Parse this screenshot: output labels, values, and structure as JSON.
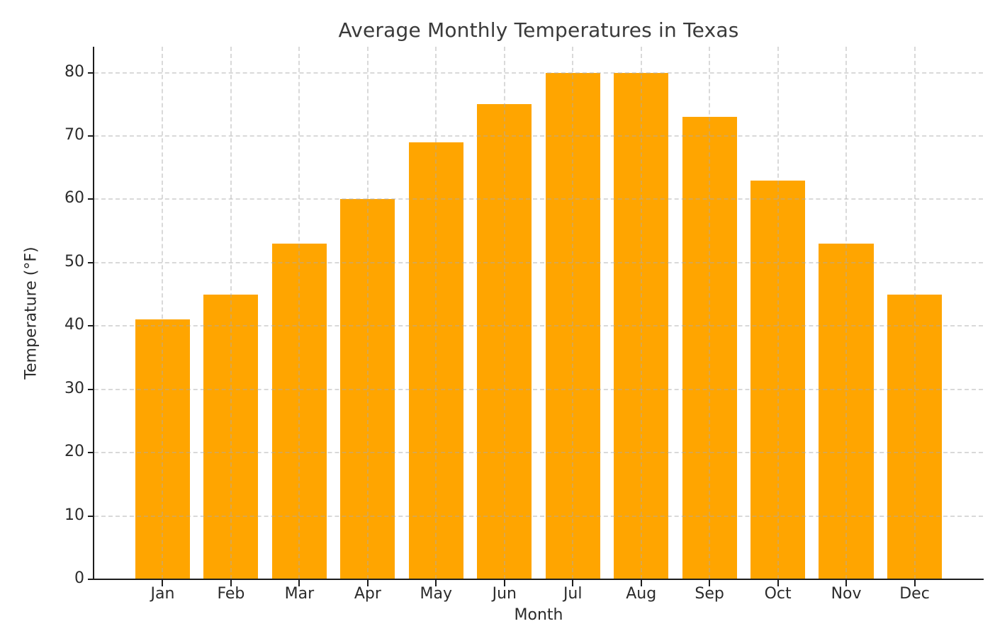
{
  "chart_data": {
    "type": "bar",
    "title": "Average Monthly Temperatures in Texas",
    "xlabel": "Month",
    "ylabel": "Temperature (°F)",
    "categories": [
      "Jan",
      "Feb",
      "Mar",
      "Apr",
      "May",
      "Jun",
      "Jul",
      "Aug",
      "Sep",
      "Oct",
      "Nov",
      "Dec"
    ],
    "values": [
      41,
      45,
      53,
      60,
      69,
      75,
      80,
      80,
      73,
      63,
      53,
      45
    ],
    "yticks": [
      0,
      10,
      20,
      30,
      40,
      50,
      60,
      70,
      80
    ],
    "ylim": [
      0,
      84
    ],
    "bar_color": "#FFA500",
    "grid": "dashed",
    "legend": "none"
  }
}
